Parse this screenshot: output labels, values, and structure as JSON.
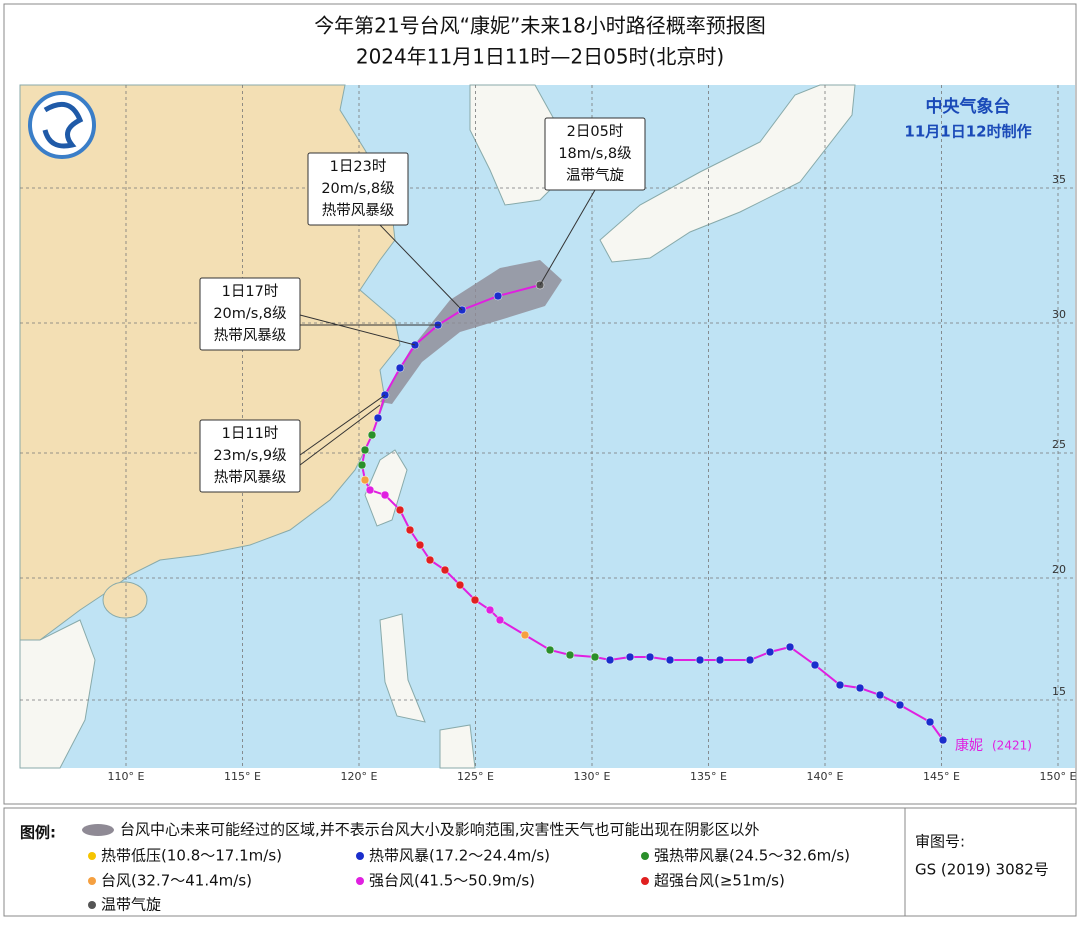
{
  "title": {
    "line1": "今年第21号台风“康妮”未来18小时路径概率预报图",
    "line2": "2024年11月1日11时—2日05时(北京时)"
  },
  "agency": {
    "name": "中央气象台",
    "made": "11月1日12时制作"
  },
  "callouts": [
    {
      "time": "2日05时",
      "wind": "18m/s,8级",
      "level": "温带气旋"
    },
    {
      "time": "1日23时",
      "wind": "20m/s,8级",
      "level": "热带风暴级"
    },
    {
      "time": "1日17时",
      "wind": "20m/s,8级",
      "level": "热带风暴级"
    },
    {
      "time": "1日11时",
      "wind": "23m/s,9级",
      "level": "热带风暴级"
    }
  ],
  "typhoon": {
    "name": "康妮",
    "code": "(2421)"
  },
  "lon_labels": [
    "110° E",
    "115° E",
    "120° E",
    "125° E",
    "130° E",
    "135° E",
    "140° E",
    "145° E",
    "150° E"
  ],
  "lat_labels": [
    "35",
    "30",
    "25",
    "20",
    "15"
  ],
  "legend": {
    "title": "图例:",
    "cone": "台风中心未来可能经过的区域,并不表示台风大小及影响范围,灾害性天气也可能出现在阴影区以外",
    "items": [
      "热带低压(10.8～17.1m/s)",
      "热带风暴(17.2～24.4m/s)",
      "强热带风暴(24.5～32.6m/s)",
      "台风(32.7～41.4m/s)",
      "强台风(41.5～50.9m/s)",
      "超强台风(≥51m/s)",
      "温带气旋"
    ]
  },
  "review": {
    "label": "审图号:",
    "number": "GS (2019) 3082号"
  }
}
